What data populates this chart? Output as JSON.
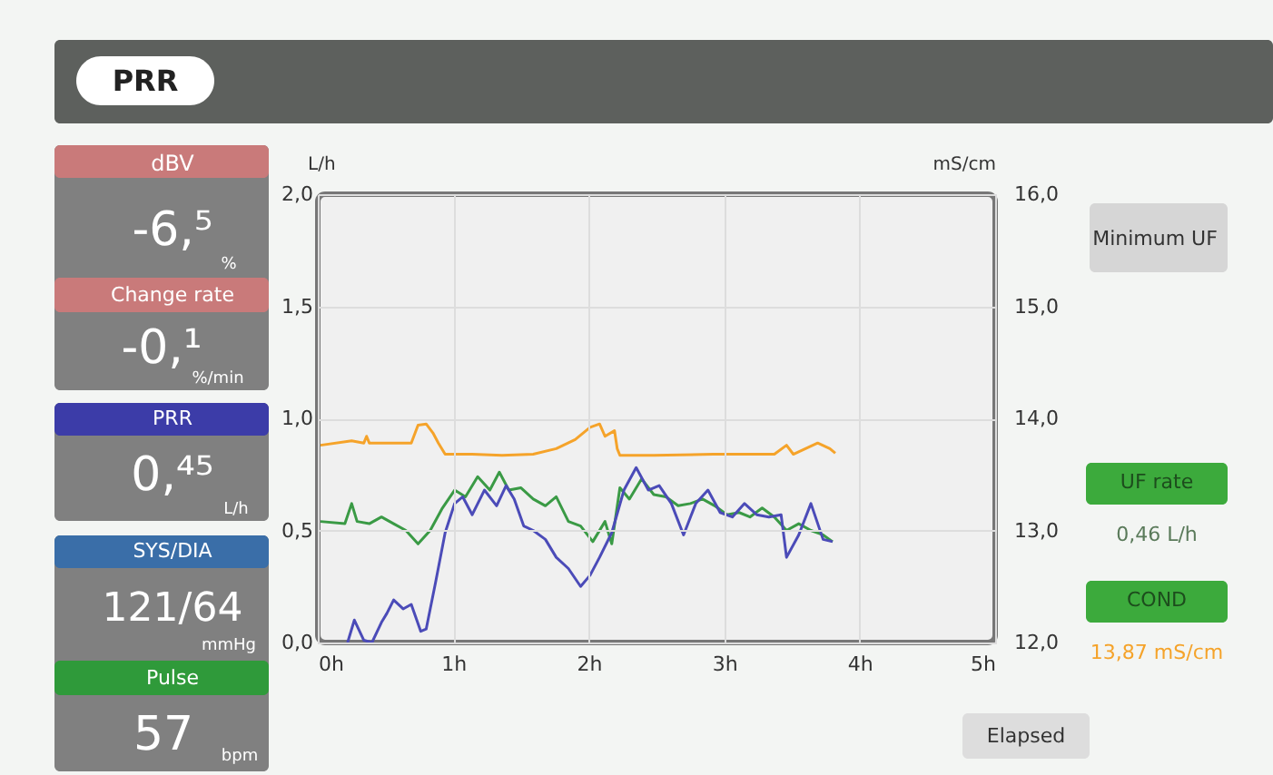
{
  "chart_data": {
    "type": "line",
    "title": "PRR",
    "ylabel": "L/h",
    "y2label": "mS/cm",
    "xlim": [
      0,
      5
    ],
    "xticks": [
      {
        "value": 0,
        "label": "0h"
      },
      {
        "value": 1,
        "label": "1h"
      },
      {
        "value": 2,
        "label": "2h"
      },
      {
        "value": 3,
        "label": "3h"
      },
      {
        "value": 4,
        "label": "4h"
      },
      {
        "value": 5,
        "label": "5h"
      }
    ],
    "ylim": [
      0,
      2
    ],
    "yticks": [
      {
        "value": 0,
        "label": "0,0"
      },
      {
        "value": 0.5,
        "label": "0,5"
      },
      {
        "value": 1,
        "label": "1,0"
      },
      {
        "value": 1.5,
        "label": "1,5"
      },
      {
        "value": 2,
        "label": "2,0"
      }
    ],
    "y2lim": [
      12,
      16
    ],
    "y2ticks": [
      {
        "value": 12,
        "label": "12,0"
      },
      {
        "value": 13,
        "label": "13,0"
      },
      {
        "value": 14,
        "label": "14,0"
      },
      {
        "value": 15,
        "label": "15,0"
      },
      {
        "value": 16,
        "label": "16,0"
      }
    ],
    "grid": true,
    "marker": "none",
    "line_style": "solid",
    "series": [
      {
        "color": "#f5a32a",
        "axis": "y2",
        "x": [
          0.02,
          0.25,
          0.34,
          0.36,
          0.38,
          0.69,
          0.74,
          0.8,
          0.85,
          0.89,
          0.94,
          1.14,
          1.36,
          1.59,
          1.76,
          1.9,
          2.01,
          2.08,
          2.12,
          2.19,
          2.21,
          2.23,
          2.48,
          2.92,
          3.37,
          3.46,
          3.51,
          3.6,
          3.69,
          3.78,
          3.82
        ],
        "values": [
          13.76,
          13.8,
          13.78,
          13.84,
          13.78,
          13.78,
          13.94,
          13.95,
          13.87,
          13.78,
          13.68,
          13.68,
          13.67,
          13.68,
          13.73,
          13.81,
          13.92,
          13.95,
          13.84,
          13.89,
          13.73,
          13.67,
          13.67,
          13.68,
          13.68,
          13.76,
          13.68,
          13.73,
          13.78,
          13.73,
          13.69
        ]
      },
      {
        "color": "#3a9a45",
        "x": [
          0.02,
          0.2,
          0.25,
          0.29,
          0.38,
          0.47,
          0.56,
          0.65,
          0.74,
          0.83,
          0.92,
          1.01,
          1.09,
          1.18,
          1.27,
          1.34,
          1.41,
          1.5,
          1.59,
          1.68,
          1.76,
          1.85,
          1.94,
          2.03,
          2.12,
          2.17,
          2.23,
          2.3,
          2.39,
          2.48,
          2.57,
          2.66,
          2.75,
          2.84,
          2.93,
          3.02,
          3.11,
          3.19,
          3.28,
          3.37,
          3.46,
          3.55,
          3.64,
          3.73,
          3.8
        ],
        "values": [
          0.54,
          0.53,
          0.62,
          0.54,
          0.53,
          0.56,
          0.53,
          0.5,
          0.44,
          0.5,
          0.6,
          0.68,
          0.65,
          0.74,
          0.68,
          0.76,
          0.68,
          0.69,
          0.64,
          0.61,
          0.65,
          0.54,
          0.52,
          0.45,
          0.54,
          0.44,
          0.69,
          0.64,
          0.73,
          0.66,
          0.65,
          0.61,
          0.62,
          0.64,
          0.61,
          0.57,
          0.58,
          0.56,
          0.6,
          0.56,
          0.5,
          0.53,
          0.5,
          0.48,
          0.45
        ]
      },
      {
        "color": "#4b4bb8",
        "x": [
          0.22,
          0.27,
          0.34,
          0.4,
          0.47,
          0.51,
          0.56,
          0.63,
          0.69,
          0.76,
          0.8,
          0.87,
          0.94,
          1.01,
          1.07,
          1.14,
          1.23,
          1.32,
          1.39,
          1.45,
          1.52,
          1.59,
          1.68,
          1.76,
          1.85,
          1.94,
          2.01,
          2.08,
          2.17,
          2.26,
          2.35,
          2.44,
          2.52,
          2.61,
          2.7,
          2.79,
          2.88,
          2.97,
          3.06,
          3.15,
          3.24,
          3.33,
          3.42,
          3.46,
          3.55,
          3.64,
          3.73,
          3.8
        ],
        "values": [
          0.0,
          0.1,
          0.01,
          0.0,
          0.09,
          0.13,
          0.19,
          0.15,
          0.17,
          0.05,
          0.06,
          0.27,
          0.49,
          0.62,
          0.65,
          0.57,
          0.68,
          0.61,
          0.7,
          0.64,
          0.52,
          0.5,
          0.46,
          0.38,
          0.33,
          0.25,
          0.3,
          0.38,
          0.49,
          0.68,
          0.78,
          0.68,
          0.7,
          0.62,
          0.48,
          0.62,
          0.68,
          0.58,
          0.56,
          0.62,
          0.57,
          0.56,
          0.57,
          0.38,
          0.48,
          0.62,
          0.46,
          0.45
        ]
      }
    ],
    "annotations": [
      "dBV",
      "-6,⁵",
      "%",
      "Change rate",
      "-0,¹",
      "%/min",
      "PRR",
      "0,⁴⁵",
      "L/h",
      "SYS/DIA",
      "121/64",
      "mmHg",
      "Pulse",
      "57",
      "bpm",
      "Minimum UF",
      "UF rate",
      "0,46 L/h",
      "COND",
      "13,87 mS/cm",
      "Elapsed"
    ]
  }
}
